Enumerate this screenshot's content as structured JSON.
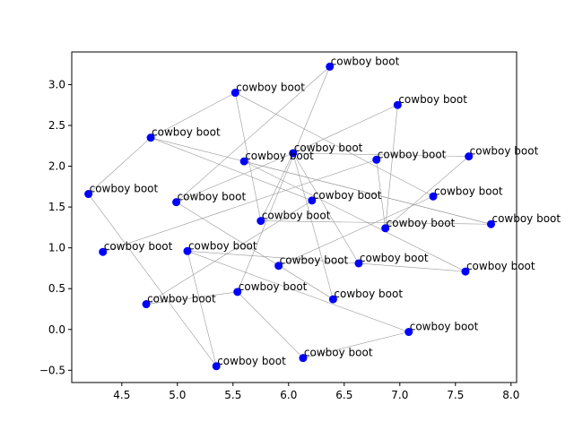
{
  "chart_data": {
    "type": "scatter",
    "title": "",
    "xlabel": "",
    "ylabel": "",
    "xlim": [
      4.05,
      8.05
    ],
    "ylim": [
      -0.65,
      3.4
    ],
    "xticks": [
      "4.5",
      "5.0",
      "5.5",
      "6.0",
      "6.5",
      "7.0",
      "7.5",
      "8.0"
    ],
    "yticks": [
      "−0.5",
      "0.0",
      "0.5",
      "1.0",
      "1.5",
      "2.0",
      "2.5",
      "3.0"
    ],
    "grid": false,
    "point_color": "#0000ff",
    "edge_color": "#999999",
    "points": [
      {
        "x": 6.37,
        "y": 3.22,
        "label": "cowboy boot"
      },
      {
        "x": 5.52,
        "y": 2.9,
        "label": "cowboy boot"
      },
      {
        "x": 6.98,
        "y": 2.75,
        "label": "cowboy boot"
      },
      {
        "x": 4.76,
        "y": 2.35,
        "label": "cowboy boot"
      },
      {
        "x": 6.04,
        "y": 2.16,
        "label": "cowboy boot"
      },
      {
        "x": 5.6,
        "y": 2.06,
        "label": "cowboy boot"
      },
      {
        "x": 6.79,
        "y": 2.08,
        "label": "cowboy boot"
      },
      {
        "x": 7.62,
        "y": 2.12,
        "label": "cowboy boot"
      },
      {
        "x": 4.2,
        "y": 1.66,
        "label": "cowboy boot"
      },
      {
        "x": 4.99,
        "y": 1.56,
        "label": "cowboy boot"
      },
      {
        "x": 6.21,
        "y": 1.58,
        "label": "cowboy boot"
      },
      {
        "x": 7.3,
        "y": 1.63,
        "label": "cowboy boot"
      },
      {
        "x": 7.82,
        "y": 1.29,
        "label": "cowboy boot"
      },
      {
        "x": 5.75,
        "y": 1.33,
        "label": "cowboy boot"
      },
      {
        "x": 6.87,
        "y": 1.24,
        "label": "cowboy boot"
      },
      {
        "x": 4.33,
        "y": 0.95,
        "label": "cowboy boot"
      },
      {
        "x": 5.09,
        "y": 0.96,
        "label": "cowboy boot"
      },
      {
        "x": 5.91,
        "y": 0.78,
        "label": "cowboy boot"
      },
      {
        "x": 6.63,
        "y": 0.81,
        "label": "cowboy boot"
      },
      {
        "x": 7.59,
        "y": 0.71,
        "label": "cowboy boot"
      },
      {
        "x": 5.54,
        "y": 0.46,
        "label": "cowboy boot"
      },
      {
        "x": 6.4,
        "y": 0.37,
        "label": "cowboy boot"
      },
      {
        "x": 4.72,
        "y": 0.31,
        "label": "cowboy boot"
      },
      {
        "x": 7.08,
        "y": -0.03,
        "label": "cowboy boot"
      },
      {
        "x": 6.13,
        "y": -0.35,
        "label": "cowboy boot"
      },
      {
        "x": 5.35,
        "y": -0.45,
        "label": "cowboy boot"
      }
    ],
    "edges": [
      [
        0,
        9
      ],
      [
        0,
        20
      ],
      [
        1,
        3
      ],
      [
        1,
        11
      ],
      [
        2,
        4
      ],
      [
        2,
        14
      ],
      [
        3,
        12
      ],
      [
        3,
        10
      ],
      [
        4,
        18
      ],
      [
        4,
        7
      ],
      [
        5,
        19
      ],
      [
        6,
        15
      ],
      [
        6,
        14
      ],
      [
        7,
        14
      ],
      [
        8,
        3
      ],
      [
        8,
        25
      ],
      [
        9,
        21
      ],
      [
        10,
        22
      ],
      [
        12,
        5
      ],
      [
        13,
        1
      ],
      [
        13,
        12
      ],
      [
        16,
        18
      ],
      [
        16,
        23
      ],
      [
        17,
        11
      ],
      [
        18,
        19
      ],
      [
        20,
        22
      ],
      [
        20,
        24
      ],
      [
        24,
        23
      ],
      [
        25,
        16
      ],
      [
        4,
        21
      ],
      [
        9,
        4
      ],
      [
        13,
        4
      ]
    ]
  }
}
